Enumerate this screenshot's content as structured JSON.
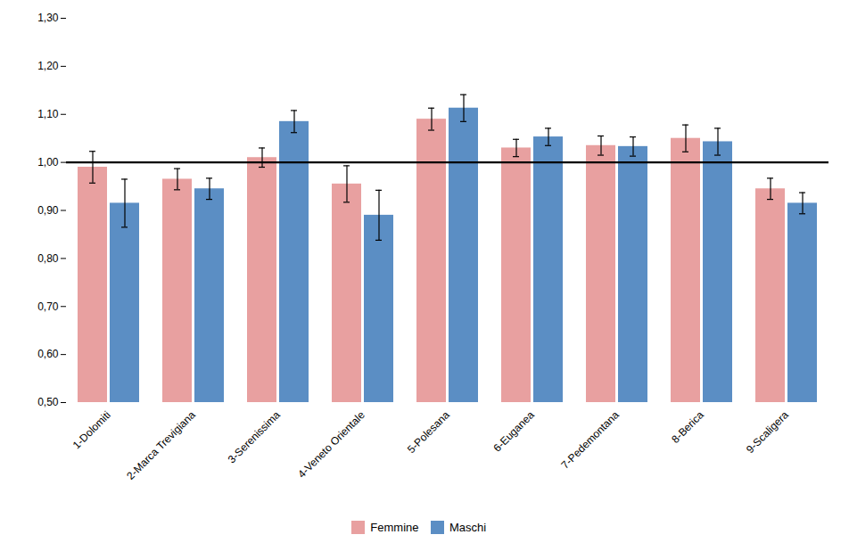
{
  "chart_data": {
    "type": "bar",
    "categories": [
      "1-Dolomiti",
      "2-Marca Trevigiana",
      "3-Serenissima",
      "4-Veneto Orientale",
      "5-Polesana",
      "6-Euganea",
      "7-Pedemontana",
      "8-Berica",
      "9-Scaligera"
    ],
    "series": [
      {
        "name": "Femmine",
        "color": "#e8a0a0",
        "values": [
          0.99,
          0.965,
          1.01,
          0.955,
          1.09,
          1.03,
          1.035,
          1.05,
          0.945
        ],
        "error_low": [
          0.033,
          0.022,
          0.02,
          0.038,
          0.023,
          0.018,
          0.02,
          0.028,
          0.022
        ],
        "error_high": [
          0.033,
          0.022,
          0.02,
          0.038,
          0.023,
          0.018,
          0.02,
          0.028,
          0.022
        ]
      },
      {
        "name": "Maschi",
        "color": "#5b8ec4",
        "values": [
          0.915,
          0.945,
          1.085,
          0.89,
          1.113,
          1.053,
          1.033,
          1.043,
          0.915
        ],
        "error_low": [
          0.05,
          0.022,
          0.023,
          0.052,
          0.028,
          0.018,
          0.02,
          0.028,
          0.022
        ],
        "error_high": [
          0.05,
          0.022,
          0.023,
          0.052,
          0.028,
          0.018,
          0.02,
          0.028,
          0.022
        ]
      }
    ],
    "ylim": [
      0.5,
      1.3
    ],
    "yticks": [
      {
        "value": 0.5,
        "label": "0,50"
      },
      {
        "value": 0.6,
        "label": "0,60"
      },
      {
        "value": 0.7,
        "label": "0,70"
      },
      {
        "value": 0.8,
        "label": "0,80"
      },
      {
        "value": 0.9,
        "label": "0,90"
      },
      {
        "value": 1.0,
        "label": "1,00"
      },
      {
        "value": 1.1,
        "label": "1,10"
      },
      {
        "value": 1.2,
        "label": "1,20"
      },
      {
        "value": 1.3,
        "label": "1,30"
      }
    ],
    "reference_line": 1.0,
    "grid": false,
    "legend": "bottom"
  }
}
